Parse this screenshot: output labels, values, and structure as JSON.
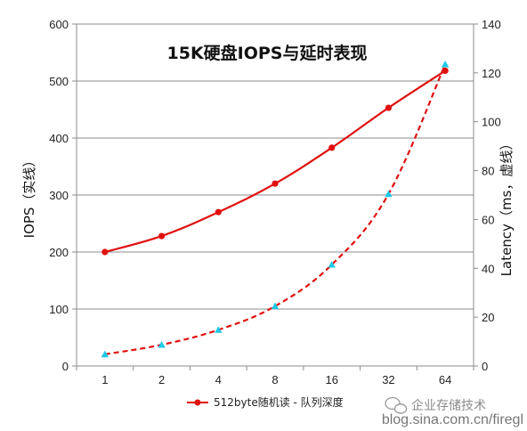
{
  "chart_data": {
    "type": "line",
    "title": "15K硬盘IOPS与延时表现",
    "categories": [
      "1",
      "2",
      "4",
      "8",
      "16",
      "32",
      "64"
    ],
    "series": [
      {
        "name": "512byte随机读 - 队列深度",
        "axis": "left",
        "style": "solid",
        "marker": "circle",
        "color": "#e01010",
        "values": [
          200,
          228,
          270,
          320,
          383,
          453,
          518
        ]
      },
      {
        "axis": "right",
        "style": "dashed",
        "marker": "triangle",
        "color": "#e01010",
        "marker_color": "#1ec8e6",
        "values": [
          4.8,
          8.7,
          14.8,
          24.5,
          41.5,
          70.4,
          123.5
        ]
      }
    ],
    "ylabel": "IOPS（实线）",
    "y2label": "Latency（ms，虚线）",
    "ylim": [
      0,
      600
    ],
    "y2lim": [
      0,
      140
    ],
    "yticks": [
      "0",
      "100",
      "200",
      "300",
      "400",
      "500",
      "600"
    ],
    "y2ticks": [
      "0",
      "20",
      "40",
      "60",
      "80",
      "100",
      "120",
      "140"
    ],
    "grid": true,
    "legend": "bottom"
  },
  "watermark": {
    "account": "企业存储技术",
    "url": "blog.sina.com.cn/firegl"
  }
}
